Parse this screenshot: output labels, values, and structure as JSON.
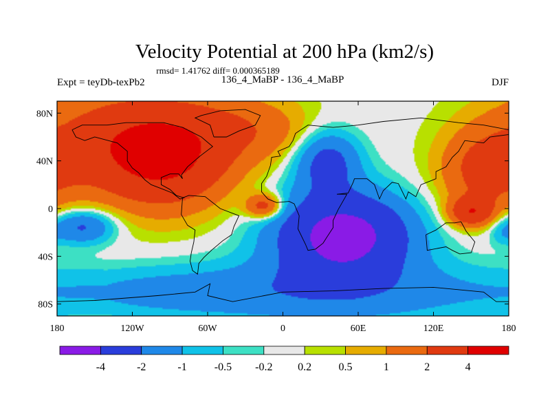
{
  "chart_data": {
    "type": "heatmap",
    "title": "Velocity Potential at 200 hPa (km2/s)",
    "subtitle": "rmsd= 1.41762 diff= 0.000365189",
    "left_label": "Expt = teyDb-texPb2",
    "center_label": "136_4_MaBP - 136_4_MaBP",
    "right_label": "DJF",
    "projection": "cylindrical-equidistant",
    "xlim": [
      -180,
      180
    ],
    "ylim": [
      -90,
      90
    ],
    "x_ticks": [
      {
        "value": -180,
        "label": "180"
      },
      {
        "value": -120,
        "label": "120W"
      },
      {
        "value": -60,
        "label": "60W"
      },
      {
        "value": 0,
        "label": "0"
      },
      {
        "value": 60,
        "label": "60E"
      },
      {
        "value": 120,
        "label": "120E"
      },
      {
        "value": 180,
        "label": "180"
      }
    ],
    "y_ticks": [
      {
        "value": 80,
        "label": "80N"
      },
      {
        "value": 40,
        "label": "40N"
      },
      {
        "value": 0,
        "label": "0"
      },
      {
        "value": -40,
        "label": "40S"
      },
      {
        "value": -80,
        "label": "80S"
      }
    ],
    "contour_levels": [
      -4,
      -2,
      -1,
      -0.5,
      -0.2,
      0.2,
      0.5,
      1,
      2,
      4
    ],
    "colorbar_labels": [
      "-4",
      "-2",
      "-1",
      "-0.5",
      "-0.2",
      "0.2",
      "0.5",
      "1",
      "2",
      "4"
    ],
    "colorbar_colors": [
      "#8a1be6",
      "#2a3ddb",
      "#1f88e8",
      "#10c2e8",
      "#3de0c4",
      "#e8e8e8",
      "#b8e000",
      "#e6ac00",
      "#ea6a10",
      "#e03a10",
      "#e00000"
    ],
    "field_centers": [
      {
        "lon": -95,
        "lat": 45,
        "value": 4.6,
        "spread_lon": 38,
        "spread_lat": 30
      },
      {
        "lon": -150,
        "lat": 60,
        "value": 1.6,
        "spread_lon": 40,
        "spread_lat": 30
      },
      {
        "lon": -30,
        "lat": 70,
        "value": 1.2,
        "spread_lon": 35,
        "spread_lat": 20
      },
      {
        "lon": -15,
        "lat": 2,
        "value": 2.8,
        "spread_lon": 10,
        "spread_lat": 7
      },
      {
        "lon": 48,
        "lat": -22,
        "value": -5.0,
        "spread_lon": 38,
        "spread_lat": 25
      },
      {
        "lon": 35,
        "lat": 40,
        "value": -2.6,
        "spread_lon": 18,
        "spread_lat": 18
      },
      {
        "lon": 40,
        "lat": -70,
        "value": -1.6,
        "spread_lon": 90,
        "spread_lat": 20
      },
      {
        "lon": -110,
        "lat": -70,
        "value": -1.0,
        "spread_lon": 70,
        "spread_lat": 15
      },
      {
        "lon": -160,
        "lat": -15,
        "value": -2.4,
        "spread_lon": 18,
        "spread_lat": 10
      },
      {
        "lon": 160,
        "lat": 30,
        "value": 2.2,
        "spread_lon": 25,
        "spread_lat": 25
      },
      {
        "lon": 150,
        "lat": -3,
        "value": 3.2,
        "spread_lon": 12,
        "spread_lat": 8
      },
      {
        "lon": 0,
        "lat": 60,
        "value": 0.4,
        "spread_lon": 25,
        "spread_lat": 15
      },
      {
        "lon": 175,
        "lat": -20,
        "value": -0.6,
        "spread_lon": 8,
        "spread_lat": 8
      }
    ]
  }
}
